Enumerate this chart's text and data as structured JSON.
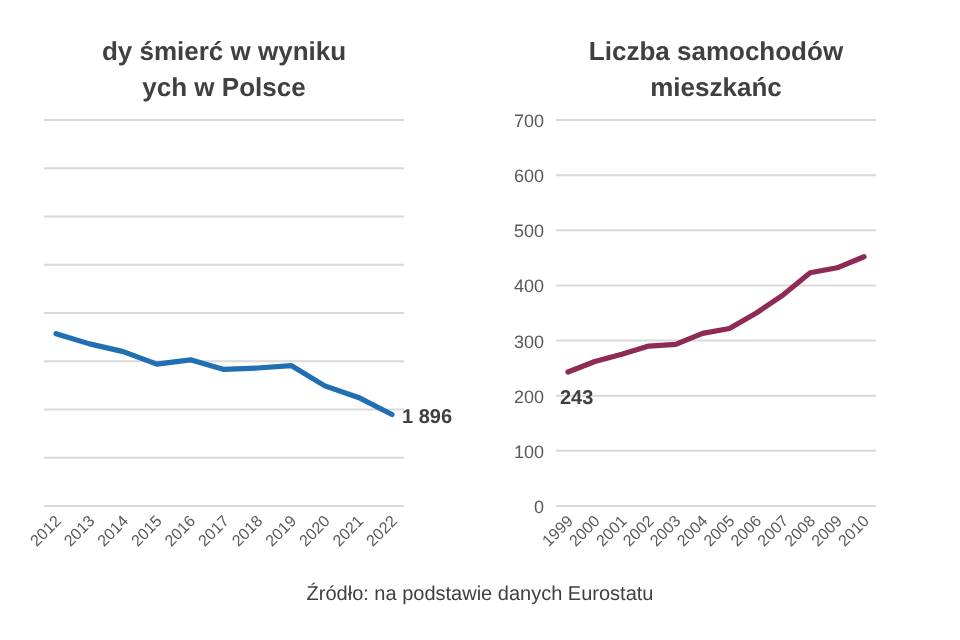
{
  "chart_data": [
    {
      "type": "line",
      "title": "dy śmierć w wyniku\nych w Polsce",
      "categories": [
        "2012",
        "2013",
        "2014",
        "2015",
        "2016",
        "2017",
        "2018",
        "2019",
        "2020",
        "2021",
        "2022"
      ],
      "ylim": [
        0,
        8000
      ],
      "yticks": [
        {
          "value": 0,
          "label": null
        },
        {
          "value": 1000,
          "label": null
        },
        {
          "value": 2000,
          "label": null
        },
        {
          "value": 3000,
          "label": null
        },
        {
          "value": 4000,
          "label": null
        },
        {
          "value": 5000,
          "label": null
        },
        {
          "value": 6000,
          "label": null
        },
        {
          "value": 7000,
          "label": null
        },
        {
          "value": 8000,
          "label": null
        }
      ],
      "grid": "y",
      "series": [
        {
          "color": "#1f6fb2",
          "values": [
            3570,
            3360,
            3200,
            2940,
            3030,
            2830,
            2860,
            2910,
            2490,
            2250,
            1896
          ],
          "value_labels": [
            null,
            null,
            null,
            null,
            null,
            null,
            null,
            null,
            null,
            null,
            "1 896"
          ]
        }
      ],
      "marker": "none",
      "line_style": "solid"
    },
    {
      "type": "line",
      "title": "Liczba samochodów\nmieszkańc",
      "categories": [
        "1999",
        "2000",
        "2001",
        "2002",
        "2003",
        "2004",
        "2005",
        "2006",
        "2007",
        "2008",
        "2009",
        "2010"
      ],
      "ylim": [
        0,
        700
      ],
      "yticks": [
        0,
        100,
        200,
        300,
        400,
        500,
        600,
        700
      ],
      "grid": "y",
      "series": [
        {
          "color": "#8e2a55",
          "values": [
            243,
            262,
            275,
            290,
            293,
            313,
            322,
            350,
            383,
            423,
            432,
            452
          ],
          "value_labels": [
            "243",
            null,
            null,
            null,
            null,
            null,
            null,
            null,
            null,
            null,
            null,
            null
          ]
        }
      ],
      "marker": "none",
      "line_style": "solid",
      "annotations": [
        "Źródło: na podstawie danych Eurostatu"
      ]
    }
  ]
}
